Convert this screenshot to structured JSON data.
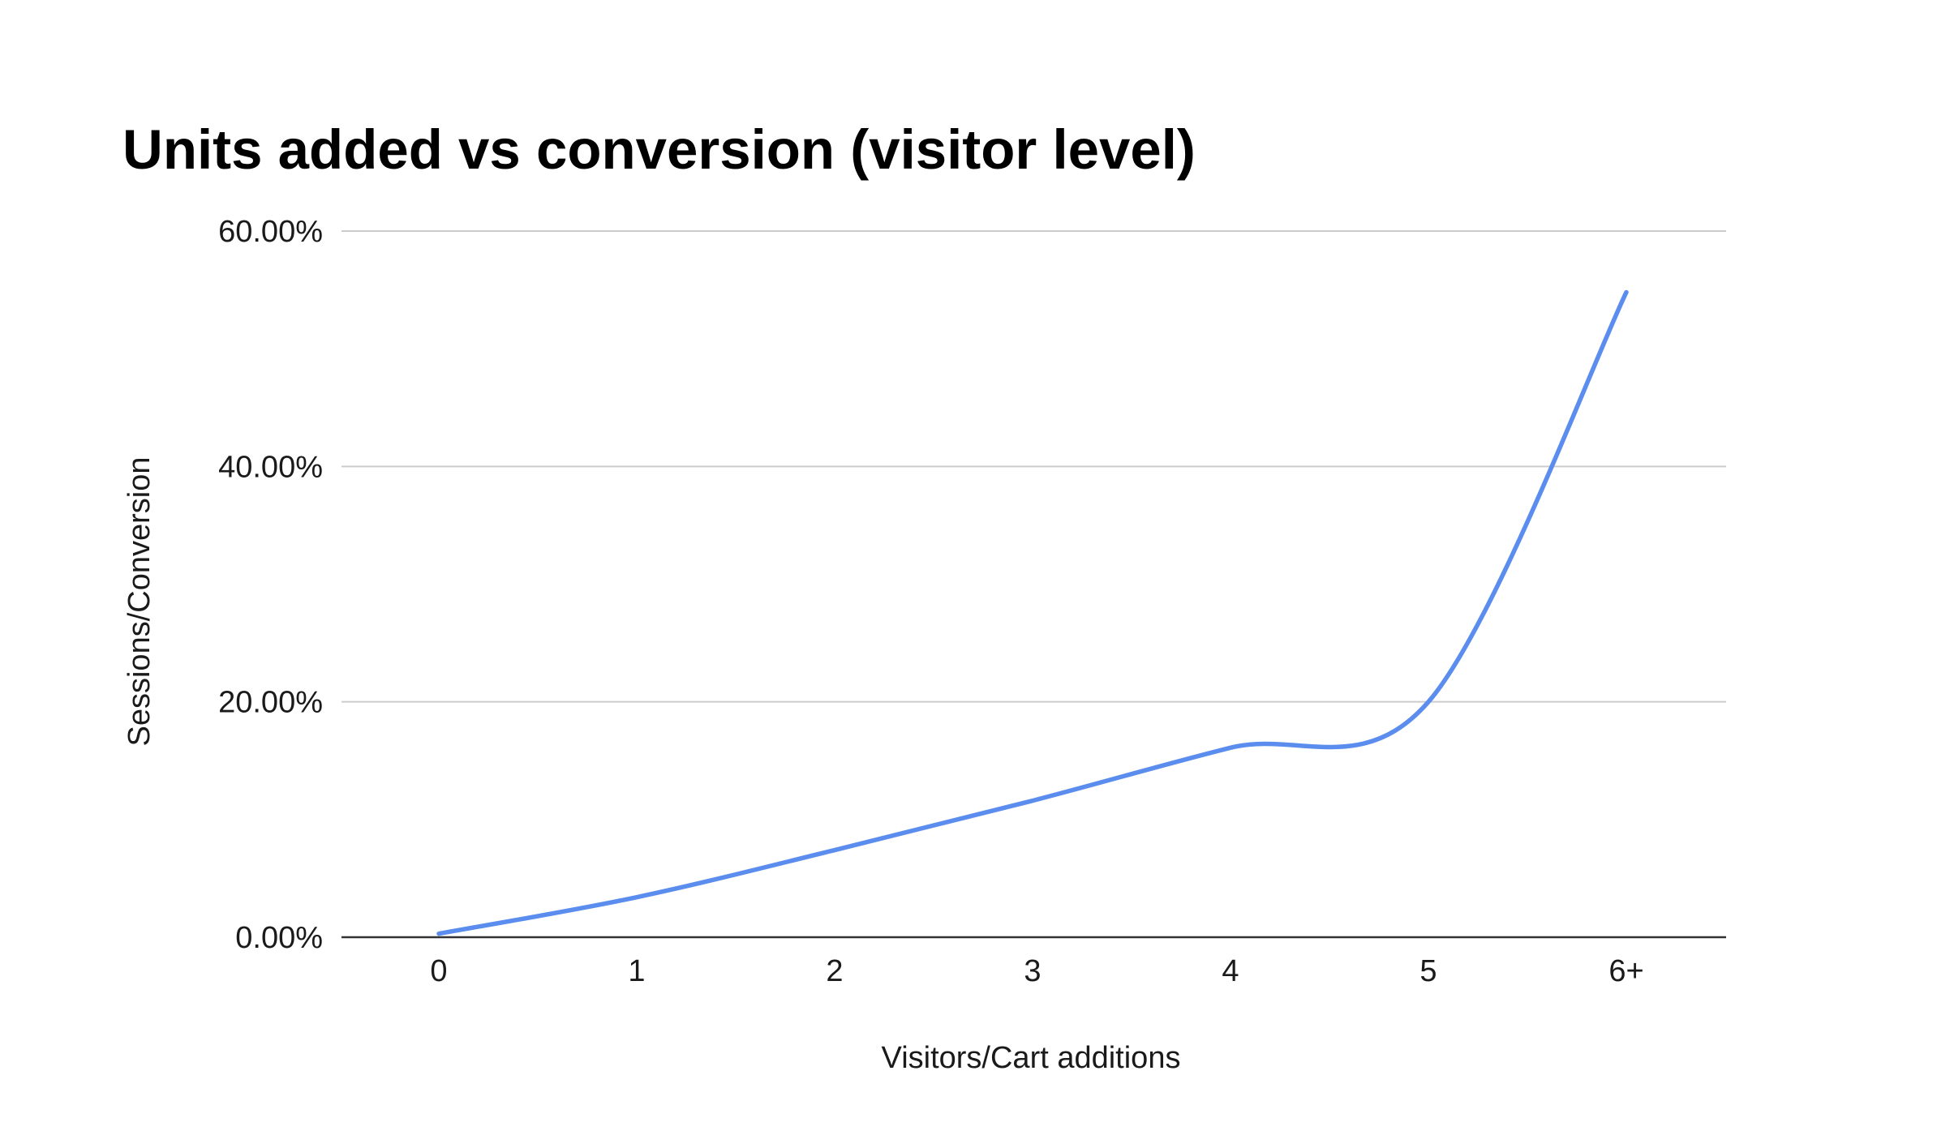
{
  "chart_data": {
    "type": "line",
    "title": "Units added vs conversion (visitor level)",
    "xlabel": "Visitors/Cart additions",
    "ylabel": "Sessions/Conversion",
    "categories": [
      "0",
      "1",
      "2",
      "3",
      "4",
      "5",
      "6+"
    ],
    "y_ticks": [
      "0.00%",
      "20.00%",
      "40.00%",
      "60.00%"
    ],
    "ylim": [
      0,
      60
    ],
    "grid": true,
    "legend": "none",
    "series": [
      {
        "values": [
          0.3,
          3.4,
          7.4,
          11.6,
          16.1,
          20.0,
          54.8
        ],
        "color": "#5b8def"
      }
    ]
  }
}
